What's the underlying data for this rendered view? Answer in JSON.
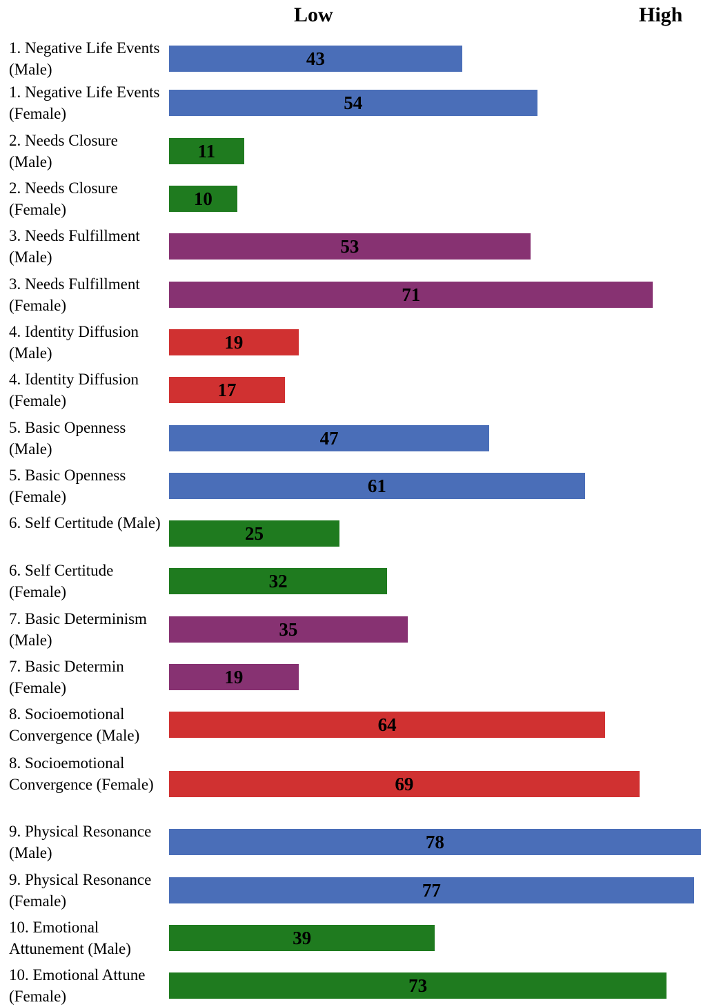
{
  "chart_data": {
    "type": "bar",
    "orientation": "horizontal",
    "title": "",
    "axis_end_labels": {
      "low": "Low",
      "high": "High"
    },
    "xlim": [
      0,
      78
    ],
    "grid": false,
    "legend": "none",
    "categories": [
      "1. Negative Life Events (Male)",
      "1. Negative Life Events (Female)",
      "2. Needs Closure (Male)",
      "2. Needs Closure (Female)",
      "3. Needs Fulfillment (Male)",
      "3. Needs Fulfillment (Female)",
      "4. Identity Diffusion (Male)",
      "4. Identity Diffusion (Female)",
      "5. Basic Openness (Male)",
      "5. Basic Openness (Female)",
      "6. Self Certitude (Male)",
      "6. Self Certitude (Female)",
      "7. Basic Determinism (Male)",
      "7. Basic Determin (Female)",
      "8. Socioemotional Convergence (Male)",
      "8. Socioemotional Convergence (Female)",
      "9. Physical Resonance (Male)",
      "9. Physical Resonance (Female)",
      "10. Emotional Attunement (Male)",
      "10. Emotional Attune (Female)"
    ],
    "values": [
      43,
      54,
      11,
      10,
      53,
      71,
      19,
      17,
      47,
      61,
      25,
      32,
      35,
      19,
      64,
      69,
      78,
      77,
      39,
      73
    ],
    "colors": [
      "#4a6eb8",
      "#4a6eb8",
      "#1f7b1f",
      "#1f7b1f",
      "#873272",
      "#873272",
      "#d03131",
      "#d03131",
      "#4a6eb8",
      "#4a6eb8",
      "#1f7b1f",
      "#1f7b1f",
      "#873272",
      "#873272",
      "#d03131",
      "#d03131",
      "#4a6eb8",
      "#4a6eb8",
      "#1f7b1f",
      "#1f7b1f"
    ]
  }
}
